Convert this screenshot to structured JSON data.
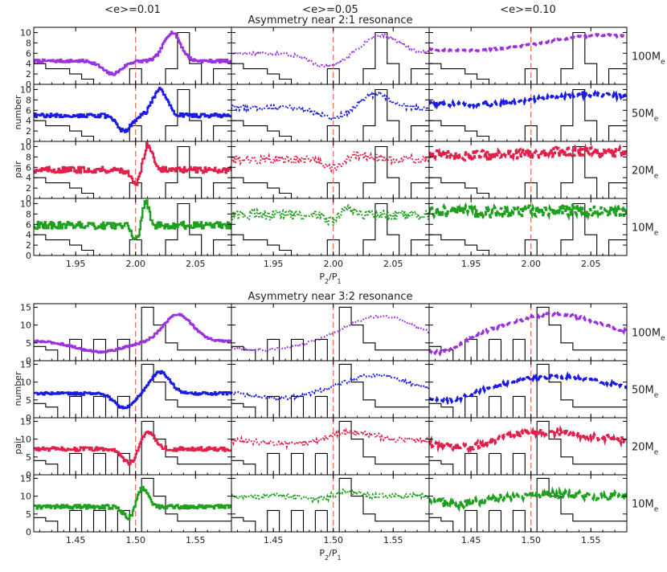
{
  "chart_data": {
    "type": "line",
    "column_titles": [
      "<e>=0.01",
      "<e>=0.05",
      "<e>=0.10"
    ],
    "row_labels": [
      {
        "value": "100",
        "unit": "M",
        "sub": "e"
      },
      {
        "value": "50",
        "unit": "M",
        "sub": "e"
      },
      {
        "value": "20",
        "unit": "M",
        "sub": "e"
      },
      {
        "value": "10",
        "unit": "M",
        "sub": "e"
      }
    ],
    "series_colors": [
      "#9b30e0",
      "#1a1ae0",
      "#e0204a",
      "#1ea01e"
    ],
    "linestyles": [
      "solid",
      "dotted",
      "dashed"
    ],
    "ylabel_top": "number",
    "ylabel_bottom": "pair",
    "xlabel": {
      "main": "P",
      "sub1": "2",
      "slash": "/P",
      "sub2": "1"
    },
    "panels": [
      {
        "title": "Asymmetry near 2:1 resonance",
        "resonance": 2.0,
        "xlim": [
          1.915,
          2.08
        ],
        "xticks": [
          1.95,
          2.0,
          2.05
        ],
        "xticklabels": [
          "1.95",
          "2.00",
          "2.05"
        ],
        "ylim": [
          0,
          11
        ],
        "yticks": [
          0,
          2,
          4,
          6,
          8,
          10
        ],
        "yticklabels": [
          "0",
          "2",
          "4",
          "6",
          "8",
          "10"
        ],
        "observed_histogram": {
          "edges": [
            1.915,
            1.925,
            1.935,
            1.945,
            1.955,
            1.965,
            1.975,
            1.985,
            1.995,
            2.005,
            2.015,
            2.025,
            2.035,
            2.045,
            2.055,
            2.065,
            2.08
          ],
          "counts": [
            4,
            3,
            3,
            2,
            1,
            0,
            0,
            0,
            3,
            0,
            0,
            3,
            10,
            4,
            0,
            3
          ]
        },
        "rows": [
          {
            "base": 4.5,
            "e01": {
              "dip_x": 1.98,
              "dip_depth": 2.5,
              "dip_width": 0.008,
              "peak_x": 2.03,
              "peak_height": 5.5,
              "peak_width": 0.007,
              "noise": 0.3
            },
            "e05": {
              "dip_x": 1.995,
              "dip_depth": 2.5,
              "dip_width": 0.015,
              "peak_x": 2.04,
              "peak_height": 3.5,
              "peak_width": 0.015,
              "noise": 0.3,
              "base": 6.0
            },
            "e10": {
              "dip_x": 1.95,
              "dip_depth": 0.5,
              "dip_width": 0.03,
              "peak_x": 2.06,
              "peak_height": 2.5,
              "peak_width": 0.04,
              "noise": 0.2,
              "base": 7.0
            }
          },
          {
            "base": 5.0,
            "e01": {
              "dip_x": 1.99,
              "dip_depth": 3.0,
              "dip_width": 0.006,
              "peak_x": 2.02,
              "peak_height": 5.0,
              "peak_width": 0.006,
              "noise": 0.4
            },
            "e05": {
              "dip_x": 2.0,
              "dip_depth": 2.0,
              "dip_width": 0.012,
              "peak_x": 2.035,
              "peak_height": 2.5,
              "peak_width": 0.012,
              "noise": 0.5,
              "base": 6.5
            },
            "e10": {
              "dip_x": 1.96,
              "dip_depth": 0.5,
              "dip_width": 0.03,
              "peak_x": 2.05,
              "peak_height": 1.5,
              "peak_width": 0.04,
              "noise": 0.4,
              "base": 7.5
            }
          },
          {
            "base": 5.5,
            "e01": {
              "dip_x": 2.0,
              "dip_depth": 3.0,
              "dip_width": 0.004,
              "peak_x": 2.01,
              "peak_height": 5.0,
              "peak_width": 0.004,
              "noise": 0.6
            },
            "e05": {
              "dip_x": 2.0,
              "dip_depth": 1.5,
              "dip_width": 0.008,
              "peak_x": 2.02,
              "peak_height": 1.0,
              "peak_width": 0.01,
              "noise": 0.8,
              "base": 7.5
            },
            "e10": {
              "dip_x": 1.97,
              "dip_depth": 0.3,
              "dip_width": 0.03,
              "peak_x": 2.04,
              "peak_height": 0.5,
              "peak_width": 0.04,
              "noise": 1.0,
              "base": 8.5
            }
          },
          {
            "base": 5.8,
            "e01": {
              "dip_x": 2.0,
              "dip_depth": 3.0,
              "dip_width": 0.003,
              "peak_x": 2.008,
              "peak_height": 4.5,
              "peak_width": 0.003,
              "noise": 0.7
            },
            "e05": {
              "dip_x": 2.0,
              "dip_depth": 1.5,
              "dip_width": 0.005,
              "peak_x": 2.01,
              "peak_height": 1.5,
              "peak_width": 0.006,
              "noise": 1.0,
              "base": 7.8
            },
            "e10": {
              "dip_x": 1.97,
              "dip_depth": 0.2,
              "dip_width": 0.03,
              "peak_x": 2.03,
              "peak_height": 0.3,
              "peak_width": 0.04,
              "noise": 1.2,
              "base": 8.5
            }
          }
        ]
      },
      {
        "title": "Asymmetry near 3:2 resonance",
        "resonance": 1.5,
        "xlim": [
          1.415,
          1.58
        ],
        "xticks": [
          1.45,
          1.5,
          1.55
        ],
        "xticklabels": [
          "1.45",
          "1.50",
          "1.55"
        ],
        "ylim": [
          0,
          16
        ],
        "yticks": [
          0,
          5,
          10,
          15
        ],
        "yticklabels": [
          "0",
          "5",
          "10",
          "15"
        ],
        "observed_histogram": {
          "edges": [
            1.415,
            1.425,
            1.435,
            1.445,
            1.455,
            1.465,
            1.475,
            1.485,
            1.495,
            1.505,
            1.515,
            1.525,
            1.535,
            1.545,
            1.555,
            1.565,
            1.58
          ],
          "counts": [
            4,
            3,
            0,
            6,
            0,
            6,
            0,
            6,
            0,
            15,
            10,
            5,
            3,
            3,
            3,
            3
          ]
        },
        "rows": [
          {
            "base": 5.5,
            "e01": {
              "dip_x": 1.47,
              "dip_depth": 3.0,
              "dip_width": 0.02,
              "peak_x": 1.535,
              "peak_height": 7.5,
              "peak_width": 0.012,
              "noise": 0.3
            },
            "e05": {
              "dip_x": 1.44,
              "dip_depth": 2.0,
              "dip_width": 0.03,
              "peak_x": 1.54,
              "peak_height": 7.5,
              "peak_width": 0.03,
              "noise": 0.3,
              "base": 5.0
            },
            "e10": {
              "dip_x": 1.425,
              "dip_depth": 4.0,
              "dip_width": 0.015,
              "peak_x": 1.52,
              "peak_height": 7.0,
              "peak_width": 0.04,
              "noise": 0.4,
              "base": 6.0
            }
          },
          {
            "base": 6.8,
            "e01": {
              "dip_x": 1.49,
              "dip_depth": 4.0,
              "dip_width": 0.008,
              "peak_x": 1.52,
              "peak_height": 6.0,
              "peak_width": 0.008,
              "noise": 0.4
            },
            "e05": {
              "dip_x": 1.455,
              "dip_depth": 2.0,
              "dip_width": 0.025,
              "peak_x": 1.535,
              "peak_height": 4.5,
              "peak_width": 0.025,
              "noise": 0.5,
              "base": 7.5
            },
            "e10": {
              "dip_x": 1.43,
              "dip_depth": 3.0,
              "dip_width": 0.02,
              "peak_x": 1.52,
              "peak_height": 4.0,
              "peak_width": 0.04,
              "noise": 0.5,
              "base": 7.5
            }
          },
          {
            "base": 7.2,
            "e01": {
              "dip_x": 1.495,
              "dip_depth": 4.0,
              "dip_width": 0.006,
              "peak_x": 1.51,
              "peak_height": 5.0,
              "peak_width": 0.006,
              "noise": 0.6
            },
            "e05": {
              "dip_x": 1.47,
              "dip_depth": 1.0,
              "dip_width": 0.02,
              "peak_x": 1.515,
              "peak_height": 2.5,
              "peak_width": 0.02,
              "noise": 0.8,
              "base": 9.5
            },
            "e10": {
              "dip_x": 1.45,
              "dip_depth": 2.0,
              "dip_width": 0.02,
              "peak_x": 1.51,
              "peak_height": 3.0,
              "peak_width": 0.04,
              "noise": 1.0,
              "base": 9.0
            }
          },
          {
            "base": 7.0,
            "e01": {
              "dip_x": 1.495,
              "dip_depth": 3.5,
              "dip_width": 0.005,
              "peak_x": 1.505,
              "peak_height": 5.5,
              "peak_width": 0.005,
              "noise": 0.6
            },
            "e05": {
              "dip_x": 1.49,
              "dip_depth": 1.0,
              "dip_width": 0.01,
              "peak_x": 1.51,
              "peak_height": 1.5,
              "peak_width": 0.01,
              "noise": 0.8,
              "base": 10.0
            },
            "e10": {
              "dip_x": 1.44,
              "dip_depth": 2.0,
              "dip_width": 0.02,
              "peak_x": 1.51,
              "peak_height": 1.0,
              "peak_width": 0.04,
              "noise": 1.2,
              "base": 9.5
            }
          }
        ]
      }
    ]
  }
}
